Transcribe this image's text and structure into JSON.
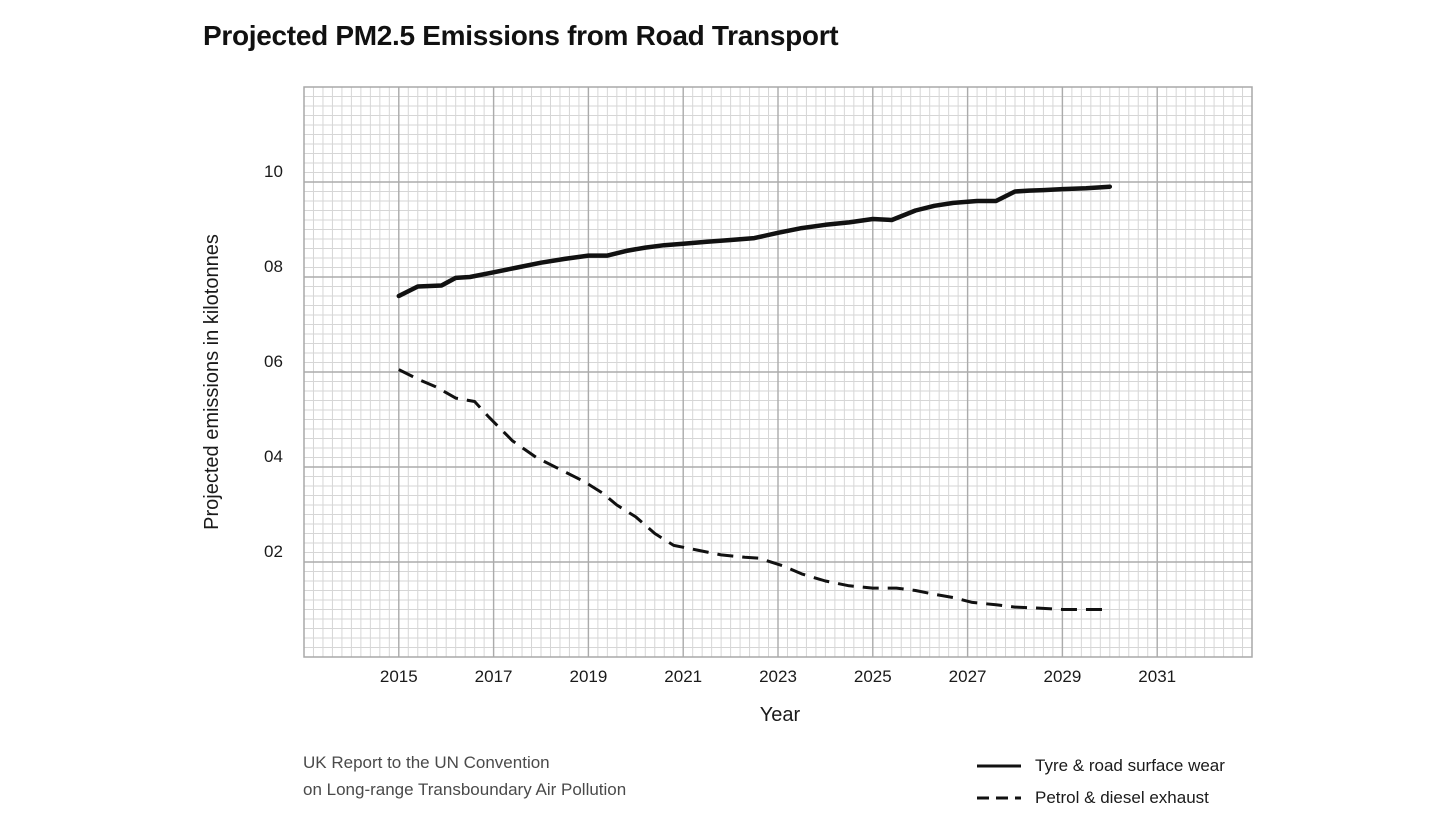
{
  "chart_data": {
    "type": "line",
    "title": "Projected PM2.5 Emissions from Road Transport",
    "xlabel": "Year",
    "ylabel": "Projected emissions in kilotonnes",
    "x_ticks": [
      "2015",
      "2017",
      "2019",
      "2021",
      "2023",
      "2025",
      "2027",
      "2029",
      "2031"
    ],
    "y_ticks": [
      "02",
      "04",
      "06",
      "08",
      "10"
    ],
    "xlim": [
      2013,
      2033
    ],
    "ylim": [
      0,
      12
    ],
    "grid": true,
    "legend_position": "bottom-right",
    "series": [
      {
        "name": "Tyre & road surface wear",
        "style": "solid",
        "color": "#111111",
        "x": [
          2015,
          2015.4,
          2015.9,
          2016.2,
          2016.5,
          2017,
          2017.5,
          2018,
          2018.5,
          2019,
          2019.4,
          2019.8,
          2020.2,
          2020.6,
          2021,
          2021.5,
          2022,
          2022.5,
          2023,
          2023.5,
          2024,
          2024.5,
          2025,
          2025.4,
          2025.9,
          2026.3,
          2026.7,
          2027.2,
          2027.6,
          2028,
          2028.3,
          2028.6,
          2029,
          2029.5,
          2030
        ],
        "y": [
          7.6,
          7.8,
          7.82,
          7.98,
          8.0,
          8.1,
          8.2,
          8.3,
          8.38,
          8.45,
          8.45,
          8.55,
          8.62,
          8.67,
          8.7,
          8.74,
          8.78,
          8.82,
          8.93,
          9.03,
          9.1,
          9.15,
          9.22,
          9.2,
          9.4,
          9.5,
          9.56,
          9.6,
          9.6,
          9.8,
          9.82,
          9.83,
          9.85,
          9.87,
          9.9
        ]
      },
      {
        "name": "Petrol & diesel exhaust",
        "style": "dashed",
        "color": "#111111",
        "x": [
          2015,
          2015.4,
          2015.8,
          2016.2,
          2016.6,
          2016.9,
          2017.4,
          2017.9,
          2018.4,
          2018.9,
          2019.3,
          2019.6,
          2020,
          2020.4,
          2020.8,
          2021.3,
          2021.8,
          2022.3,
          2022.6,
          2023.1,
          2023.5,
          2024,
          2024.5,
          2025,
          2025.5,
          2025.9,
          2026.3,
          2026.7,
          2027.1,
          2027.6,
          2028,
          2028.5,
          2029,
          2029.5,
          2030
        ],
        "y": [
          6.05,
          5.85,
          5.68,
          5.45,
          5.38,
          5.05,
          4.55,
          4.2,
          3.95,
          3.7,
          3.45,
          3.2,
          2.95,
          2.6,
          2.35,
          2.25,
          2.15,
          2.1,
          2.08,
          1.92,
          1.75,
          1.6,
          1.5,
          1.45,
          1.45,
          1.4,
          1.32,
          1.25,
          1.15,
          1.1,
          1.05,
          1.03,
          1.0,
          1.0,
          1.0
        ]
      }
    ]
  },
  "source_lines": [
    "UK Report to the UN Convention",
    "on Long-range Transboundary Air Pollution"
  ]
}
